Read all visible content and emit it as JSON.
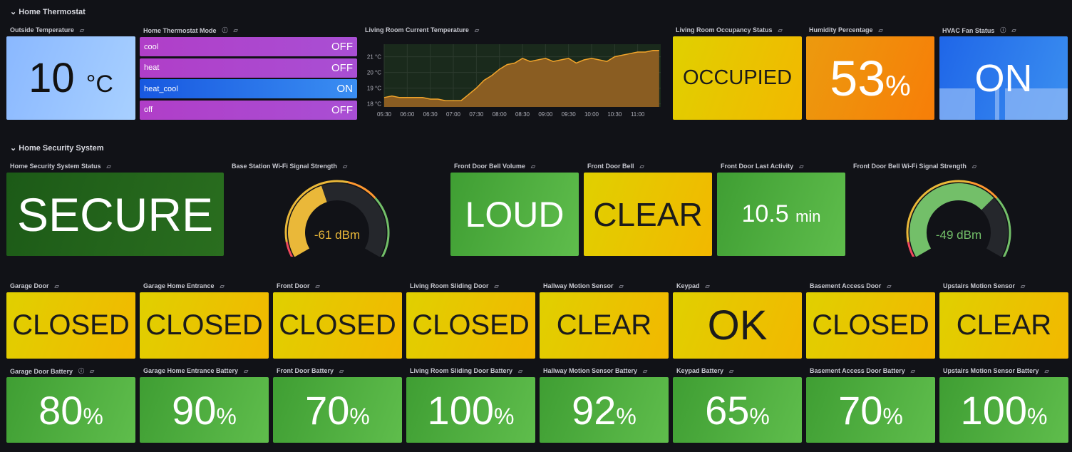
{
  "rows": {
    "thermostat": "Home Thermostat",
    "security": "Home Security System"
  },
  "thermostat": {
    "outside": {
      "title": "Outside Temperature",
      "value": "10",
      "unit": "°C"
    },
    "mode": {
      "title": "Home Thermostat Mode",
      "items": [
        {
          "label": "cool",
          "state": "OFF"
        },
        {
          "label": "heat",
          "state": "OFF"
        },
        {
          "label": "heat_cool",
          "state": "ON"
        },
        {
          "label": "off",
          "state": "OFF"
        }
      ]
    },
    "chart_title": "Living Room Current Temperature",
    "occupancy": {
      "title": "Living Room Occupancy Status",
      "value": "OCCUPIED"
    },
    "humidity": {
      "title": "Humidity Percentage",
      "value": "53",
      "unit": "%"
    },
    "hvac": {
      "title": "HVAC Fan Status",
      "value": "ON"
    }
  },
  "chart_data": {
    "type": "area",
    "title": "Living Room Current Temperature",
    "ylabel": "",
    "xlabel": "",
    "x_ticks": [
      "05:30",
      "06:00",
      "06:30",
      "07:00",
      "07:30",
      "08:00",
      "08:30",
      "09:00",
      "09:30",
      "10:00",
      "10:30",
      "11:00"
    ],
    "y_ticks": [
      "18 °C",
      "19 °C",
      "20 °C",
      "21 °C"
    ],
    "ylim": [
      17.8,
      21.8
    ],
    "xlim": [
      "05:30",
      "11:30"
    ],
    "x": [
      "05:30",
      "05:40",
      "05:50",
      "06:00",
      "06:10",
      "06:20",
      "06:30",
      "06:40",
      "06:50",
      "07:00",
      "07:10",
      "07:20",
      "07:30",
      "07:40",
      "07:50",
      "08:00",
      "08:10",
      "08:20",
      "08:30",
      "08:40",
      "08:50",
      "09:00",
      "09:10",
      "09:20",
      "09:30",
      "09:40",
      "09:50",
      "10:00",
      "10:10",
      "10:20",
      "10:30",
      "10:40",
      "10:50",
      "11:00",
      "11:10",
      "11:20",
      "11:28"
    ],
    "values": [
      18.4,
      18.5,
      18.4,
      18.4,
      18.4,
      18.4,
      18.3,
      18.3,
      18.2,
      18.2,
      18.2,
      18.6,
      19.0,
      19.5,
      19.8,
      20.2,
      20.5,
      20.6,
      20.9,
      20.7,
      20.8,
      20.9,
      20.7,
      20.8,
      20.9,
      20.6,
      20.8,
      20.9,
      20.8,
      20.7,
      21.0,
      21.1,
      21.2,
      21.3,
      21.3,
      21.4,
      21.4
    ],
    "colors": {
      "line": "#f2a52b",
      "fill": "#8a5d22",
      "background": "#1a2a1c"
    },
    "grid": true
  },
  "security": {
    "status": {
      "title": "Home Security System Status",
      "value": "SECURE"
    },
    "base_wifi": {
      "title": "Base Station Wi-Fi Signal Strength",
      "value": -61,
      "label": "-61 dBm",
      "min": -80,
      "max": -35,
      "color": "#eab839"
    },
    "bell_volume": {
      "title": "Front Door Bell Volume",
      "value": "LOUD"
    },
    "bell": {
      "title": "Front Door Bell",
      "value": "CLEAR"
    },
    "last_activity": {
      "title": "Front Door Last Activity",
      "value": "10.5",
      "unit": "min"
    },
    "bell_wifi": {
      "title": "Front Door Bell Wi-Fi Signal Strength",
      "value": -49,
      "label": "-49 dBm",
      "min": -80,
      "max": -35,
      "color": "#73bf69"
    }
  },
  "sensors": [
    {
      "title": "Garage Door",
      "value": "CLOSED",
      "battery_title": "Garage Door Battery",
      "battery": "80",
      "info": true
    },
    {
      "title": "Garage Home Entrance",
      "value": "CLOSED",
      "battery_title": "Garage Home Entrance Battery",
      "battery": "90"
    },
    {
      "title": "Front Door",
      "value": "CLOSED",
      "battery_title": "Front Door Battery",
      "battery": "70"
    },
    {
      "title": "Living Room Sliding Door",
      "value": "CLOSED",
      "battery_title": "Living Room Sliding Door Battery",
      "battery": "100"
    },
    {
      "title": "Hallway Motion Sensor",
      "value": "CLEAR",
      "battery_title": "Hallway Motion Sensor Battery",
      "battery": "92"
    },
    {
      "title": "Keypad",
      "value": "OK",
      "battery_title": "Keypad Battery",
      "battery": "65"
    },
    {
      "title": "Basement Access Door",
      "value": "CLOSED",
      "battery_title": "Basement Access Door Battery",
      "battery": "70"
    },
    {
      "title": "Upstairs Motion Sensor",
      "value": "CLEAR",
      "battery_title": "Upstairs Motion Sensor Battery",
      "battery": "100"
    }
  ],
  "battery_unit": "%"
}
